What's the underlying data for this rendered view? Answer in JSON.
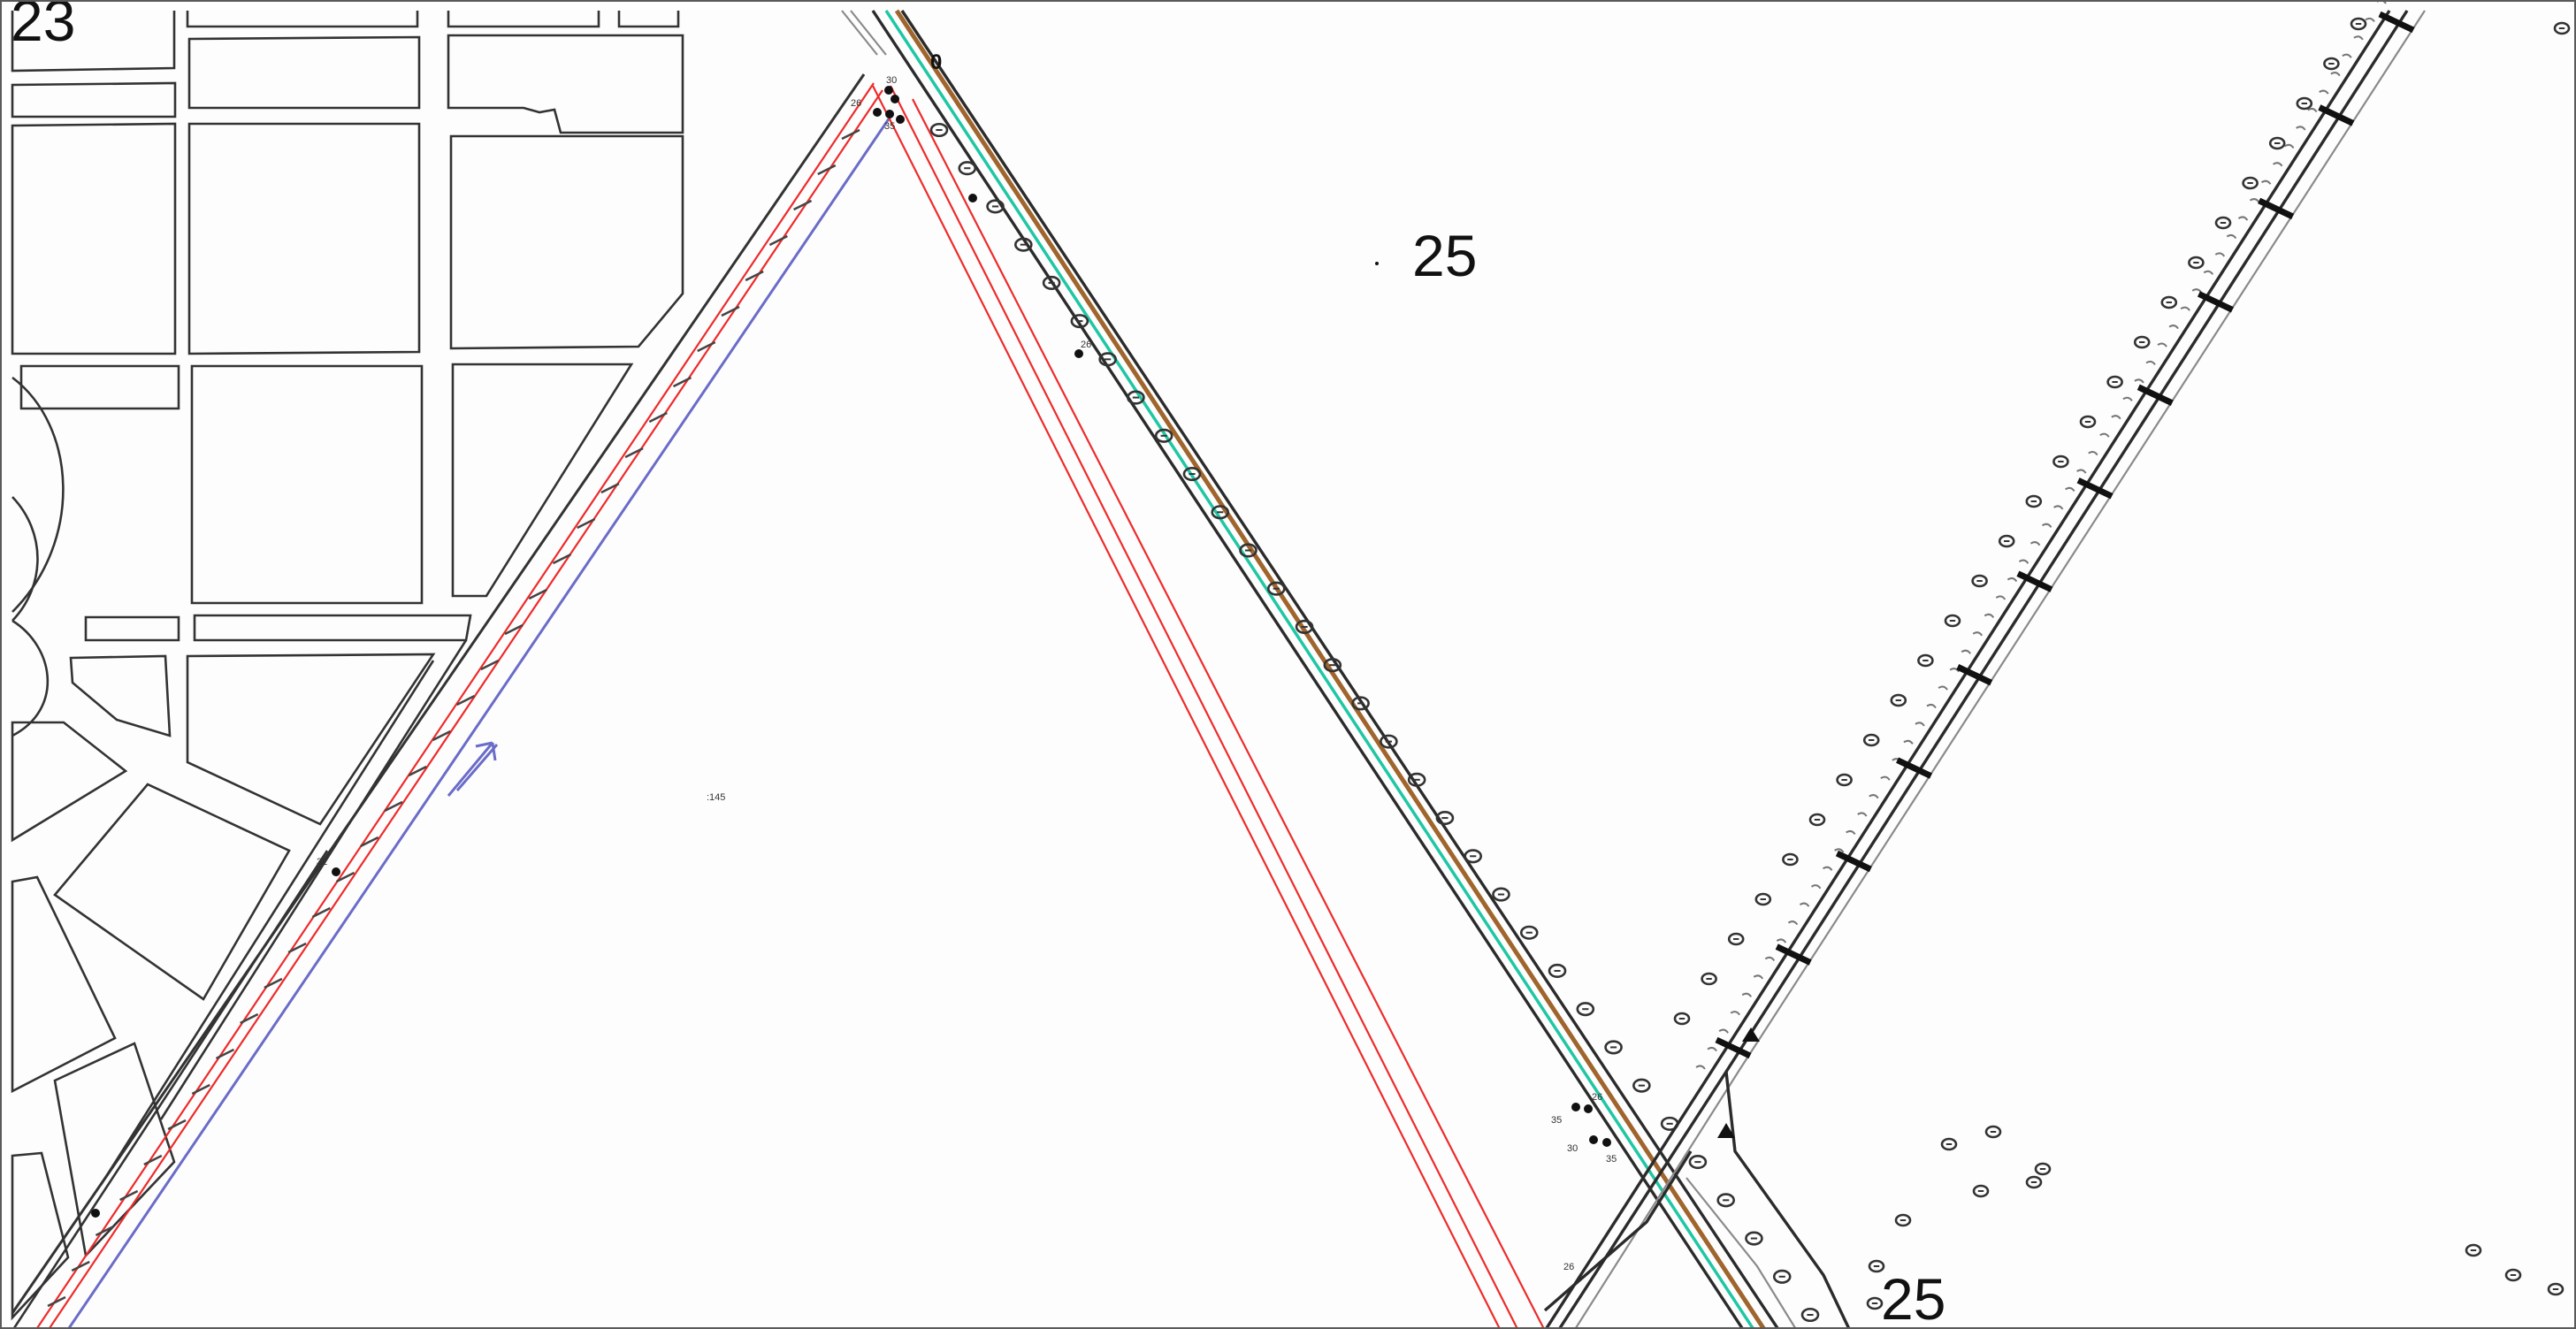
{
  "map": {
    "colors": {
      "background": "#fdfdfd",
      "boundary_red": "#ee2b2b",
      "boundary_blue": "#6a6cc8",
      "road_cyan": "#1fc7a5",
      "road_brown": "#a0652c",
      "linework": "#333333"
    },
    "labels": {
      "top_left_number": "23",
      "parcel_upper": "25",
      "parcel_lower": "25",
      "parcel_center_small": ":145",
      "top_zero": "0",
      "left_node": "32",
      "upper_node_a": "26",
      "upper_node_b": "30",
      "upper_node_c": "35",
      "lower_node_a": "26",
      "lower_node_b": "35",
      "lower_node_c": "30",
      "lower_node_d": "35",
      "bottom_node": "26"
    },
    "icons": {
      "direction_arrow": "direction-arrow-icon",
      "tree_symbol": "tree-symbol-icon",
      "survey_point": "survey-point-icon"
    }
  }
}
